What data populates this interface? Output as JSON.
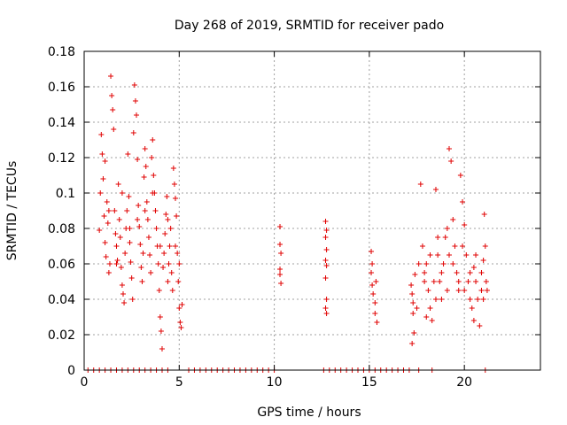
{
  "chart_data": {
    "type": "scatter",
    "title": "Day 268 of 2019, SRMTID for receiver pado",
    "xlabel": "GPS time / hours",
    "ylabel": "SRMTID / TECUs",
    "xlim": [
      0,
      24
    ],
    "ylim": [
      0,
      0.18
    ],
    "xticks": [
      0,
      5,
      10,
      15,
      20
    ],
    "yticks": [
      0,
      0.02,
      0.04,
      0.06,
      0.08,
      0.1,
      0.12,
      0.14,
      0.16,
      0.18
    ],
    "xtick_labels": [
      "0",
      "5",
      "10",
      "15",
      "20"
    ],
    "ytick_labels": [
      "0",
      "0.02",
      "0.04",
      "0.06",
      "0.08",
      "0.1",
      "0.12",
      "0.14",
      "0.16",
      "0.18"
    ],
    "grid": true,
    "marker": "+",
    "color": "#e00000",
    "series": [
      {
        "name": "SRMTID",
        "points": [
          [
            0.8,
            0.079
          ],
          [
            0.85,
            0.1
          ],
          [
            0.9,
            0.133
          ],
          [
            0.95,
            0.122
          ],
          [
            1.0,
            0.108
          ],
          [
            1.05,
            0.087
          ],
          [
            1.1,
            0.072
          ],
          [
            1.15,
            0.064
          ],
          [
            1.2,
            0.095
          ],
          [
            1.25,
            0.083
          ],
          [
            1.3,
            0.055
          ],
          [
            1.35,
            0.06
          ],
          [
            1.4,
            0.166
          ],
          [
            1.45,
            0.155
          ],
          [
            1.5,
            0.147
          ],
          [
            1.55,
            0.136
          ],
          [
            1.6,
            0.09
          ],
          [
            1.65,
            0.077
          ],
          [
            1.7,
            0.07
          ],
          [
            1.75,
            0.062
          ],
          [
            1.8,
            0.105
          ],
          [
            1.85,
            0.085
          ],
          [
            1.9,
            0.075
          ],
          [
            1.95,
            0.058
          ],
          [
            2.0,
            0.048
          ],
          [
            2.05,
            0.043
          ],
          [
            2.1,
            0.038
          ],
          [
            2.15,
            0.066
          ],
          [
            2.2,
            0.08
          ],
          [
            2.25,
            0.09
          ],
          [
            2.3,
            0.122
          ],
          [
            2.35,
            0.098
          ],
          [
            2.4,
            0.072
          ],
          [
            2.45,
            0.061
          ],
          [
            2.5,
            0.052
          ],
          [
            2.55,
            0.04
          ],
          [
            2.6,
            0.134
          ],
          [
            2.65,
            0.161
          ],
          [
            2.7,
            0.152
          ],
          [
            2.75,
            0.144
          ],
          [
            2.8,
            0.119
          ],
          [
            2.85,
            0.093
          ],
          [
            2.9,
            0.081
          ],
          [
            2.95,
            0.071
          ],
          [
            3.0,
            0.058
          ],
          [
            3.05,
            0.05
          ],
          [
            3.1,
            0.066
          ],
          [
            3.15,
            0.109
          ],
          [
            3.2,
            0.125
          ],
          [
            3.25,
            0.115
          ],
          [
            3.3,
            0.095
          ],
          [
            3.35,
            0.085
          ],
          [
            3.4,
            0.075
          ],
          [
            3.45,
            0.065
          ],
          [
            3.5,
            0.055
          ],
          [
            3.55,
            0.12
          ],
          [
            3.6,
            0.13
          ],
          [
            3.65,
            0.11
          ],
          [
            3.7,
            0.1
          ],
          [
            3.75,
            0.09
          ],
          [
            3.8,
            0.08
          ],
          [
            3.85,
            0.07
          ],
          [
            3.9,
            0.06
          ],
          [
            3.95,
            0.045
          ],
          [
            4.0,
            0.03
          ],
          [
            4.05,
            0.022
          ],
          [
            4.1,
            0.012
          ],
          [
            4.15,
            0.058
          ],
          [
            4.2,
            0.066
          ],
          [
            4.25,
            0.077
          ],
          [
            4.3,
            0.088
          ],
          [
            4.35,
            0.098
          ],
          [
            4.4,
            0.05
          ],
          [
            4.45,
            0.06
          ],
          [
            4.5,
            0.07
          ],
          [
            4.55,
            0.08
          ],
          [
            4.6,
            0.055
          ],
          [
            4.65,
            0.045
          ],
          [
            4.7,
            0.114
          ],
          [
            4.75,
            0.105
          ],
          [
            4.8,
            0.097
          ],
          [
            4.85,
            0.087
          ],
          [
            4.9,
            0.066
          ],
          [
            4.95,
            0.05
          ],
          [
            5.0,
            0.035
          ],
          [
            5.05,
            0.027
          ],
          [
            5.1,
            0.024
          ],
          [
            5.15,
            0.037
          ],
          [
            1.1,
            0.118
          ],
          [
            1.3,
            0.09
          ],
          [
            1.7,
            0.06
          ],
          [
            2.0,
            0.1
          ],
          [
            2.4,
            0.08
          ],
          [
            2.8,
            0.085
          ],
          [
            3.2,
            0.09
          ],
          [
            3.6,
            0.1
          ],
          [
            4.0,
            0.07
          ],
          [
            4.4,
            0.085
          ],
          [
            4.8,
            0.07
          ],
          [
            5.0,
            0.06
          ],
          [
            10.3,
            0.081
          ],
          [
            10.3,
            0.071
          ],
          [
            10.35,
            0.066
          ],
          [
            10.3,
            0.057
          ],
          [
            10.3,
            0.054
          ],
          [
            10.35,
            0.049
          ],
          [
            12.7,
            0.084
          ],
          [
            12.75,
            0.079
          ],
          [
            12.7,
            0.075
          ],
          [
            12.75,
            0.068
          ],
          [
            12.7,
            0.062
          ],
          [
            12.75,
            0.059
          ],
          [
            12.7,
            0.052
          ],
          [
            12.75,
            0.04
          ],
          [
            12.7,
            0.035
          ],
          [
            12.75,
            0.032
          ],
          [
            15.1,
            0.067
          ],
          [
            15.15,
            0.06
          ],
          [
            15.1,
            0.055
          ],
          [
            15.15,
            0.048
          ],
          [
            15.2,
            0.043
          ],
          [
            15.3,
            0.038
          ],
          [
            15.35,
            0.05
          ],
          [
            15.4,
            0.027
          ],
          [
            15.3,
            0.032
          ],
          [
            17.2,
            0.048
          ],
          [
            17.25,
            0.043
          ],
          [
            17.3,
            0.038
          ],
          [
            17.35,
            0.021
          ],
          [
            17.25,
            0.015
          ],
          [
            17.4,
            0.054
          ],
          [
            17.3,
            0.032
          ],
          [
            17.5,
            0.035
          ],
          [
            17.7,
            0.105
          ],
          [
            17.8,
            0.07
          ],
          [
            17.9,
            0.055
          ],
          [
            18.0,
            0.06
          ],
          [
            18.1,
            0.045
          ],
          [
            18.2,
            0.035
          ],
          [
            18.3,
            0.028
          ],
          [
            18.4,
            0.05
          ],
          [
            18.5,
            0.102
          ],
          [
            18.6,
            0.065
          ],
          [
            18.7,
            0.05
          ],
          [
            18.8,
            0.04
          ],
          [
            18.9,
            0.06
          ],
          [
            19.0,
            0.075
          ],
          [
            19.1,
            0.08
          ],
          [
            19.2,
            0.125
          ],
          [
            19.3,
            0.118
          ],
          [
            19.4,
            0.085
          ],
          [
            19.5,
            0.07
          ],
          [
            19.6,
            0.055
          ],
          [
            19.7,
            0.045
          ],
          [
            19.8,
            0.11
          ],
          [
            19.9,
            0.095
          ],
          [
            20.0,
            0.082
          ],
          [
            20.1,
            0.065
          ],
          [
            20.2,
            0.05
          ],
          [
            20.3,
            0.04
          ],
          [
            20.4,
            0.035
          ],
          [
            20.5,
            0.058
          ],
          [
            20.6,
            0.065
          ],
          [
            20.7,
            0.04
          ],
          [
            20.8,
            0.025
          ],
          [
            20.9,
            0.055
          ],
          [
            21.0,
            0.062
          ],
          [
            21.05,
            0.088
          ],
          [
            21.1,
            0.07
          ],
          [
            21.15,
            0.05
          ],
          [
            21.2,
            0.045
          ],
          [
            17.6,
            0.06
          ],
          [
            17.9,
            0.05
          ],
          [
            18.2,
            0.065
          ],
          [
            18.5,
            0.04
          ],
          [
            18.8,
            0.055
          ],
          [
            19.1,
            0.045
          ],
          [
            19.4,
            0.06
          ],
          [
            19.7,
            0.05
          ],
          [
            20.0,
            0.045
          ],
          [
            20.3,
            0.055
          ],
          [
            20.6,
            0.05
          ],
          [
            20.9,
            0.045
          ],
          [
            18.0,
            0.03
          ],
          [
            18.6,
            0.075
          ],
          [
            19.2,
            0.065
          ],
          [
            19.9,
            0.07
          ],
          [
            20.5,
            0.028
          ],
          [
            21.0,
            0.04
          ],
          [
            0.2,
            0
          ],
          [
            0.5,
            0
          ],
          [
            0.8,
            0
          ],
          [
            1.1,
            0
          ],
          [
            1.4,
            0
          ],
          [
            1.7,
            0
          ],
          [
            2.0,
            0
          ],
          [
            2.3,
            0
          ],
          [
            2.6,
            0
          ],
          [
            2.9,
            0
          ],
          [
            3.2,
            0
          ],
          [
            3.5,
            0
          ],
          [
            3.8,
            0
          ],
          [
            4.1,
            0
          ],
          [
            4.4,
            0
          ],
          [
            5.5,
            0
          ],
          [
            5.8,
            0
          ],
          [
            6.1,
            0
          ],
          [
            6.4,
            0
          ],
          [
            6.7,
            0
          ],
          [
            7.0,
            0
          ],
          [
            7.3,
            0
          ],
          [
            7.6,
            0
          ],
          [
            7.9,
            0
          ],
          [
            8.2,
            0
          ],
          [
            8.5,
            0
          ],
          [
            8.8,
            0
          ],
          [
            9.1,
            0
          ],
          [
            9.4,
            0
          ],
          [
            9.7,
            0
          ],
          [
            10.0,
            0
          ],
          [
            12.6,
            0
          ],
          [
            12.9,
            0
          ],
          [
            13.2,
            0
          ],
          [
            13.5,
            0
          ],
          [
            13.8,
            0
          ],
          [
            14.1,
            0
          ],
          [
            14.4,
            0
          ],
          [
            14.7,
            0
          ],
          [
            15.0,
            0
          ],
          [
            15.3,
            0
          ],
          [
            15.6,
            0
          ],
          [
            15.9,
            0
          ],
          [
            16.2,
            0
          ],
          [
            16.5,
            0
          ],
          [
            16.8,
            0
          ],
          [
            17.1,
            0
          ],
          [
            17.6,
            0
          ],
          [
            18.3,
            0
          ],
          [
            21.1,
            0
          ]
        ]
      }
    ]
  }
}
